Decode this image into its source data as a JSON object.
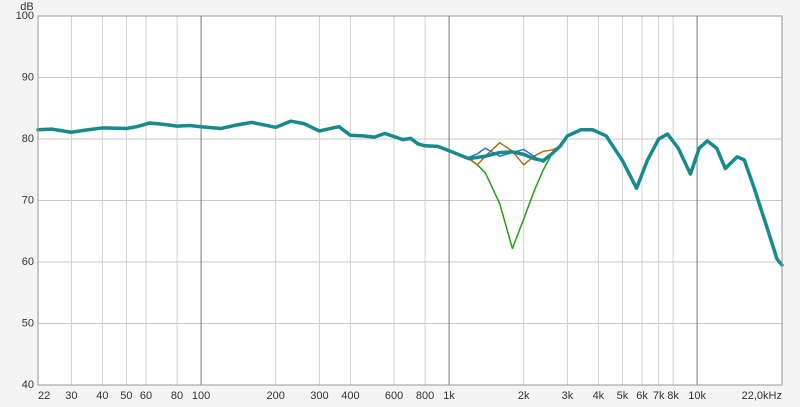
{
  "chart_data": {
    "type": "line",
    "ylabel": "dB",
    "xscale": "log",
    "grid": true,
    "xlim": [
      22,
      22000
    ],
    "ylim": [
      40,
      100
    ],
    "yticks": [
      40,
      50,
      60,
      70,
      80,
      90,
      100
    ],
    "xticks": [
      22,
      30,
      40,
      50,
      60,
      80,
      100,
      200,
      300,
      400,
      600,
      800,
      {
        "value": 1000,
        "label": "1k"
      },
      {
        "value": 2000,
        "label": "2k"
      },
      {
        "value": 3000,
        "label": "3k"
      },
      {
        "value": 4000,
        "label": "4k"
      },
      {
        "value": 5000,
        "label": "5k"
      },
      {
        "value": 6000,
        "label": "6k"
      },
      {
        "value": 7000,
        "label": "7k"
      },
      {
        "value": 8000,
        "label": "8k"
      },
      {
        "value": 10000,
        "label": "10k"
      },
      {
        "value": 22000,
        "label": "22,0kHz"
      }
    ],
    "x": [
      22,
      25,
      30,
      35,
      40,
      50,
      55,
      62,
      70,
      80,
      90,
      100,
      120,
      140,
      160,
      200,
      230,
      260,
      300,
      340,
      360,
      400,
      450,
      500,
      550,
      600,
      650,
      700,
      750,
      800,
      900,
      1000,
      1200,
      1300,
      1400,
      1600,
      1800,
      2000,
      2200,
      2400,
      2600,
      2800,
      3000,
      3400,
      3800,
      4300,
      5000,
      5700,
      6300,
      7000,
      7600,
      8400,
      9400,
      10200,
      11000,
      12000,
      13000,
      14500,
      15500,
      17000,
      19000,
      21000,
      22000
    ],
    "series": [
      {
        "name": "green",
        "color": "#22a012",
        "width": 1.5,
        "values": [
          null,
          null,
          null,
          null,
          null,
          null,
          null,
          null,
          null,
          null,
          null,
          null,
          null,
          null,
          null,
          null,
          null,
          null,
          null,
          null,
          null,
          null,
          null,
          null,
          null,
          null,
          null,
          null,
          null,
          null,
          null,
          78.1,
          76.9,
          75.8,
          74.5,
          69.5,
          62.2,
          67,
          71.5,
          75,
          77.6,
          78.8,
          null,
          null,
          null,
          null,
          null,
          null,
          null,
          null,
          null,
          null,
          null,
          null,
          null,
          null,
          null,
          null,
          null,
          null,
          null,
          null,
          null
        ]
      },
      {
        "name": "orange",
        "color": "#b86a10",
        "width": 1.5,
        "values": [
          null,
          null,
          null,
          null,
          null,
          null,
          null,
          null,
          null,
          null,
          null,
          null,
          null,
          null,
          null,
          null,
          null,
          null,
          null,
          null,
          null,
          null,
          null,
          null,
          null,
          null,
          null,
          null,
          null,
          null,
          null,
          78.1,
          76.8,
          75.8,
          77.2,
          79.4,
          78,
          75.8,
          77.2,
          78,
          78.2,
          78.8,
          null,
          null,
          null,
          null,
          null,
          null,
          null,
          null,
          null,
          null,
          null,
          null,
          null,
          null,
          null,
          null,
          null,
          null,
          null,
          null,
          null
        ]
      },
      {
        "name": "blue",
        "color": "#2a72c8",
        "width": 1.5,
        "values": [
          null,
          null,
          null,
          null,
          null,
          null,
          null,
          null,
          null,
          null,
          null,
          null,
          null,
          null,
          null,
          null,
          null,
          null,
          null,
          null,
          null,
          null,
          null,
          null,
          null,
          null,
          null,
          null,
          null,
          null,
          null,
          78.1,
          77,
          77.6,
          78.5,
          77.2,
          77.8,
          78.3,
          77.2,
          76.2,
          77.6,
          78.8,
          null,
          null,
          null,
          null,
          null,
          null,
          null,
          null,
          null,
          null,
          null,
          null,
          null,
          null,
          null,
          null,
          null,
          null,
          null,
          null,
          null
        ]
      },
      {
        "name": "teal",
        "color": "#178a8c",
        "width": 3.5,
        "values": [
          81.5,
          81.6,
          81.1,
          81.5,
          81.8,
          81.7,
          82.0,
          82.6,
          82.4,
          82.1,
          82.2,
          82.0,
          81.7,
          82.3,
          82.7,
          81.9,
          82.9,
          82.5,
          81.3,
          81.8,
          82.0,
          80.6,
          80.5,
          80.3,
          80.9,
          80.4,
          79.9,
          80.1,
          79.2,
          78.9,
          78.8,
          78.1,
          76.8,
          77.0,
          77.2,
          77.8,
          77.9,
          77.5,
          76.8,
          76.5,
          77.6,
          78.8,
          80.5,
          81.5,
          81.5,
          80.5,
          76.5,
          72.0,
          76.5,
          80.0,
          80.8,
          78.5,
          74.3,
          78.5,
          79.7,
          78.5,
          75.2,
          77.1,
          76.6,
          72.0,
          66.0,
          60.5,
          59.5
        ]
      }
    ]
  }
}
